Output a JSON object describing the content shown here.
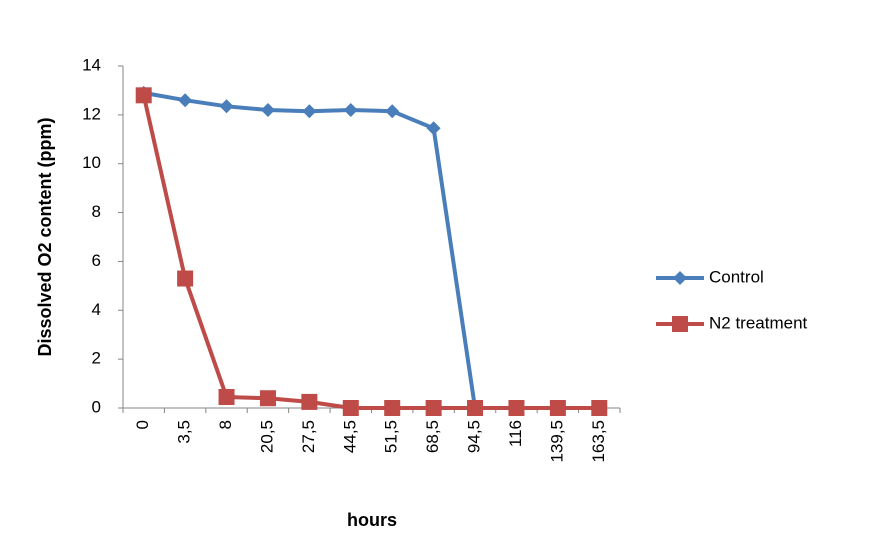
{
  "chart_data": {
    "type": "line",
    "y_label": "Dissolved O2 content (ppm)",
    "x_label": "hours",
    "categories": [
      "0",
      "3,5",
      "8",
      "20,5",
      "27,5",
      "44,5",
      "51,5",
      "68,5",
      "94,5",
      "116",
      "139,5",
      "163,5"
    ],
    "series": [
      {
        "name": "Control",
        "color": "#4a7ebb",
        "marker": "diamond",
        "values": [
          12.9,
          12.6,
          12.35,
          12.2,
          12.15,
          12.2,
          12.15,
          11.45,
          0,
          0,
          0,
          0
        ]
      },
      {
        "name": "N2 treatment",
        "color": "#be4b48",
        "marker": "square",
        "values": [
          12.8,
          5.3,
          0.45,
          0.4,
          0.25,
          0,
          0,
          0,
          0,
          0,
          0,
          0
        ]
      }
    ],
    "ylim": [
      0,
      14
    ],
    "yticks": [
      0,
      2,
      4,
      6,
      8,
      10,
      12,
      14
    ],
    "grid": false,
    "legend": "right"
  }
}
